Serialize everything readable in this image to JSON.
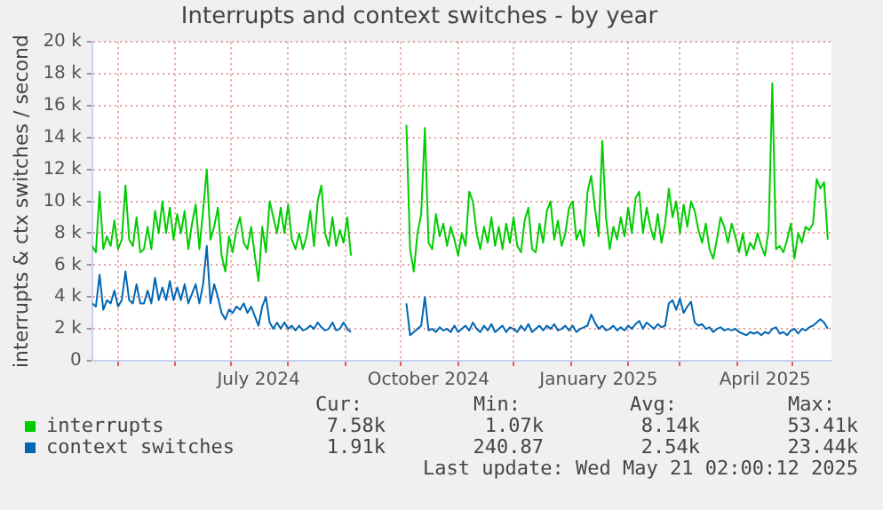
{
  "chart_data": {
    "type": "line",
    "title": "Interrupts and context switches - by year",
    "ylabel": "interrupts & ctx switches / second",
    "x": [
      "2024-04-17",
      "2024-04-19",
      "2024-04-21",
      "2024-04-23",
      "2024-04-25",
      "2024-04-27",
      "2024-04-29",
      "2024-05-01",
      "2024-05-03",
      "2024-05-05",
      "2024-05-07",
      "2024-05-09",
      "2024-05-11",
      "2024-05-13",
      "2024-05-15",
      "2024-05-17",
      "2024-05-19",
      "2024-05-21",
      "2024-05-23",
      "2024-05-25",
      "2024-05-27",
      "2024-05-29",
      "2024-05-31",
      "2024-06-02",
      "2024-06-04",
      "2024-06-06",
      "2024-06-08",
      "2024-06-10",
      "2024-06-12",
      "2024-06-14",
      "2024-06-16",
      "2024-06-18",
      "2024-06-20",
      "2024-06-22",
      "2024-06-24",
      "2024-06-26",
      "2024-06-28",
      "2024-06-30",
      "2024-07-02",
      "2024-07-04",
      "2024-07-06",
      "2024-07-08",
      "2024-07-10",
      "2024-07-12",
      "2024-07-14",
      "2024-07-16",
      "2024-07-18",
      "2024-07-20",
      "2024-07-22",
      "2024-07-24",
      "2024-07-26",
      "2024-07-28",
      "2024-07-30",
      "2024-08-01",
      "2024-08-03",
      "2024-08-05",
      "2024-08-07",
      "2024-08-09",
      "2024-08-11",
      "2024-08-13",
      "2024-08-15",
      "2024-08-17",
      "2024-08-19",
      "2024-08-21",
      "2024-08-23",
      "2024-08-25",
      "2024-08-27",
      "2024-08-29",
      "2024-08-31",
      "2024-09-02",
      "2024-09-04",
      "2024-09-06",
      "2024-09-08",
      "2024-09-10",
      "2024-09-12",
      "2024-09-14",
      "2024-09-16",
      "2024-09-18",
      "2024-09-20",
      "2024-09-22",
      "2024-09-24",
      "2024-09-26",
      "2024-09-28",
      "2024-09-30",
      "2024-10-02",
      "2024-10-04",
      "2024-10-06",
      "2024-10-08",
      "2024-10-10",
      "2024-10-12",
      "2024-10-14",
      "2024-10-16",
      "2024-10-18",
      "2024-10-20",
      "2024-10-22",
      "2024-10-24",
      "2024-10-26",
      "2024-10-28",
      "2024-10-30",
      "2024-11-01",
      "2024-11-03",
      "2024-11-05",
      "2024-11-07",
      "2024-11-09",
      "2024-11-11",
      "2024-11-13",
      "2024-11-15",
      "2024-11-17",
      "2024-11-19",
      "2024-11-21",
      "2024-11-23",
      "2024-11-25",
      "2024-11-27",
      "2024-11-29",
      "2024-12-01",
      "2024-12-03",
      "2024-12-05",
      "2024-12-07",
      "2024-12-09",
      "2024-12-11",
      "2024-12-13",
      "2024-12-15",
      "2024-12-17",
      "2024-12-19",
      "2024-12-21",
      "2024-12-23",
      "2024-12-25",
      "2024-12-27",
      "2024-12-29",
      "2024-12-31",
      "2025-01-02",
      "2025-01-04",
      "2025-01-06",
      "2025-01-08",
      "2025-01-10",
      "2025-01-12",
      "2025-01-14",
      "2025-01-16",
      "2025-01-18",
      "2025-01-20",
      "2025-01-22",
      "2025-01-24",
      "2025-01-26",
      "2025-01-28",
      "2025-01-30",
      "2025-02-01",
      "2025-02-03",
      "2025-02-05",
      "2025-02-07",
      "2025-02-09",
      "2025-02-11",
      "2025-02-13",
      "2025-02-15",
      "2025-02-17",
      "2025-02-19",
      "2025-02-21",
      "2025-02-23",
      "2025-02-25",
      "2025-02-27",
      "2025-03-01",
      "2025-03-03",
      "2025-03-05",
      "2025-03-07",
      "2025-03-09",
      "2025-03-11",
      "2025-03-13",
      "2025-03-15",
      "2025-03-17",
      "2025-03-19",
      "2025-03-21",
      "2025-03-23",
      "2025-03-25",
      "2025-03-27",
      "2025-03-29",
      "2025-03-31",
      "2025-04-02",
      "2025-04-04",
      "2025-04-06",
      "2025-04-08",
      "2025-04-10",
      "2025-04-12",
      "2025-04-14",
      "2025-04-16",
      "2025-04-18",
      "2025-04-20",
      "2025-04-22",
      "2025-04-24",
      "2025-04-26",
      "2025-04-28",
      "2025-04-30",
      "2025-05-02",
      "2025-05-04",
      "2025-05-06",
      "2025-05-08",
      "2025-05-10",
      "2025-05-12",
      "2025-05-14",
      "2025-05-16",
      "2025-05-18",
      "2025-05-20"
    ],
    "series": [
      {
        "name": "interrupts",
        "color": "#00cc00",
        "values": [
          7200,
          6800,
          10600,
          7000,
          7800,
          7200,
          8800,
          7000,
          7600,
          11000,
          7600,
          7200,
          9000,
          6800,
          7000,
          8400,
          7000,
          9400,
          8000,
          10000,
          8000,
          9600,
          7600,
          9200,
          8000,
          9400,
          7000,
          8600,
          9800,
          7000,
          9400,
          12000,
          7600,
          8400,
          9600,
          6600,
          5600,
          7800,
          6800,
          8200,
          9000,
          7400,
          7000,
          8400,
          6600,
          5000,
          8400,
          6800,
          10000,
          9000,
          8000,
          9600,
          8000,
          9800,
          7600,
          7000,
          8000,
          7000,
          7800,
          9400,
          7200,
          10000,
          11000,
          8000,
          7200,
          9000,
          7200,
          8200,
          7400,
          9000,
          6600,
          null,
          null,
          null,
          null,
          null,
          null,
          null,
          null,
          null,
          null,
          null,
          null,
          null,
          null,
          14800,
          7000,
          5600,
          8000,
          9200,
          14600,
          7400,
          7000,
          9200,
          7800,
          8600,
          7200,
          8400,
          7600,
          6600,
          8000,
          7200,
          10600,
          10000,
          8000,
          7000,
          8400,
          7400,
          9000,
          7200,
          8400,
          7000,
          8600,
          7400,
          9000,
          7200,
          6800,
          8800,
          9600,
          7000,
          6800,
          8600,
          7400,
          9400,
          10000,
          7600,
          8800,
          7200,
          8000,
          9600,
          10000,
          7600,
          8200,
          7200,
          10600,
          11600,
          9600,
          7800,
          13800,
          9000,
          7000,
          8400,
          7600,
          9000,
          7800,
          9600,
          8000,
          10200,
          10600,
          8000,
          9600,
          8400,
          7600,
          9200,
          7400,
          8600,
          10800,
          9000,
          10000,
          8000,
          9800,
          8400,
          10000,
          9400,
          8200,
          7400,
          8600,
          7000,
          6400,
          7600,
          9000,
          8400,
          7400,
          8600,
          7800,
          6800,
          8000,
          6600,
          7400,
          7000,
          8000,
          7200,
          6600,
          8200,
          17400,
          7000,
          7200,
          6800,
          7600,
          8600,
          6400,
          8000,
          7400,
          8400,
          8200,
          8600,
          11400,
          10800,
          11200,
          7600
        ]
      },
      {
        "name": "context switches",
        "color": "#0066b3",
        "values": [
          3600,
          3400,
          5400,
          3200,
          3800,
          3600,
          4400,
          3400,
          3800,
          5600,
          3800,
          3600,
          4800,
          3600,
          3600,
          4400,
          3600,
          5200,
          3800,
          4600,
          3800,
          5000,
          3800,
          4600,
          3800,
          4800,
          3600,
          4200,
          4800,
          3600,
          4800,
          7200,
          3600,
          4800,
          4000,
          3000,
          2600,
          3200,
          3000,
          3400,
          3200,
          3600,
          3000,
          3400,
          2800,
          2200,
          3400,
          4000,
          2400,
          2000,
          2400,
          2000,
          2400,
          2000,
          2200,
          1900,
          2200,
          1900,
          2000,
          2200,
          2000,
          2400,
          2100,
          1900,
          2000,
          2400,
          1900,
          2000,
          2400,
          2000,
          1800,
          null,
          null,
          null,
          null,
          null,
          null,
          null,
          null,
          null,
          null,
          null,
          null,
          null,
          null,
          3600,
          1600,
          1800,
          2000,
          2200,
          4000,
          1900,
          2000,
          1800,
          2100,
          1900,
          2000,
          1800,
          2200,
          1800,
          2000,
          2200,
          1900,
          2400,
          2000,
          1800,
          2200,
          1900,
          2300,
          1800,
          2000,
          2200,
          1800,
          2100,
          2000,
          1800,
          2200,
          1900,
          2300,
          1800,
          2000,
          2200,
          1900,
          2200,
          2000,
          2300,
          1900,
          2000,
          2200,
          1900,
          2200,
          1800,
          2000,
          2100,
          2200,
          2900,
          2400,
          2000,
          2200,
          1900,
          2000,
          2200,
          1900,
          2100,
          1900,
          2200,
          2000,
          2300,
          2500,
          2000,
          2400,
          2200,
          2000,
          2300,
          2100,
          2200,
          3600,
          3800,
          3200,
          3900,
          3000,
          3400,
          3700,
          2400,
          2200,
          2300,
          2000,
          2100,
          1800,
          2000,
          2100,
          1900,
          2000,
          1900,
          2000,
          1800,
          1700,
          1600,
          1800,
          1700,
          1800,
          1600,
          1800,
          1700,
          2000,
          2100,
          1700,
          1800,
          1600,
          1900,
          2000,
          1700,
          2000,
          1900,
          2100,
          2200,
          2400,
          2600,
          2400,
          2000
        ]
      }
    ],
    "xlim": [
      "2024-04-17",
      "2025-05-22"
    ],
    "xticks": [
      {
        "value": "2024-05-01",
        "label": null
      },
      {
        "value": "2024-06-01",
        "label": null
      },
      {
        "value": "2024-07-01",
        "label": null
      },
      {
        "value": "2024-07-16",
        "label": "July 2024"
      },
      {
        "value": "2024-08-01",
        "label": null
      },
      {
        "value": "2024-09-01",
        "label": null
      },
      {
        "value": "2024-10-01",
        "label": null
      },
      {
        "value": "2024-10-16",
        "label": "October 2024"
      },
      {
        "value": "2024-11-01",
        "label": null
      },
      {
        "value": "2024-12-01",
        "label": null
      },
      {
        "value": "2025-01-01",
        "label": null
      },
      {
        "value": "2025-01-16",
        "label": "January 2025"
      },
      {
        "value": "2025-02-01",
        "label": null
      },
      {
        "value": "2025-03-01",
        "label": null
      },
      {
        "value": "2025-04-01",
        "label": null
      },
      {
        "value": "2025-04-16",
        "label": "April 2025"
      },
      {
        "value": "2025-05-01",
        "label": null
      }
    ],
    "ylim": [
      0,
      20000
    ],
    "yticks": [
      {
        "value": 0,
        "label": "0"
      },
      {
        "value": 2000,
        "label": "2 k"
      },
      {
        "value": 4000,
        "label": "4 k"
      },
      {
        "value": 6000,
        "label": "6 k"
      },
      {
        "value": 8000,
        "label": "8 k"
      },
      {
        "value": 10000,
        "label": "10 k"
      },
      {
        "value": 12000,
        "label": "12 k"
      },
      {
        "value": 14000,
        "label": "14 k"
      },
      {
        "value": 16000,
        "label": "16 k"
      },
      {
        "value": 18000,
        "label": "18 k"
      },
      {
        "value": 20000,
        "label": "20 k"
      }
    ],
    "grid": true,
    "legend": "bottom",
    "annotations": [
      "Cur:",
      "Min:",
      "Avg:",
      "Max:",
      "7.58k",
      "1.07k",
      "8.14k",
      "53.41k",
      "1.91k",
      "240.87",
      "2.54k",
      "23.44k",
      "Last update: Wed May 21 02:00:12 2025"
    ]
  }
}
